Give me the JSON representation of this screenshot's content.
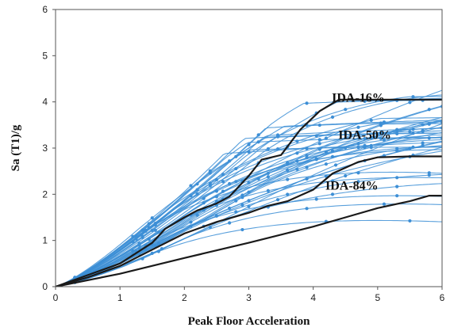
{
  "chart_data": {
    "type": "line",
    "title": "",
    "xlabel": "Peak Floor Acceleration",
    "ylabel": "Sa (T1)/g",
    "xlim": [
      0,
      6
    ],
    "ylim": [
      0,
      6
    ],
    "xticks": [
      "0",
      "1",
      "2",
      "3",
      "4",
      "5",
      "6"
    ],
    "yticks": [
      "0",
      "1",
      "2",
      "3",
      "4",
      "5",
      "6"
    ],
    "grid": false,
    "legend": "none",
    "colors": {
      "records": "#3d8fd6",
      "fractiles": "#1a1a1a"
    },
    "annotations": [
      {
        "text": "IDA-16%",
        "x": 4.7,
        "y": 4.0
      },
      {
        "text": "IDA-50%",
        "x": 4.8,
        "y": 3.2
      },
      {
        "text": "IDA-84%",
        "x": 4.6,
        "y": 2.1
      }
    ],
    "series": [
      {
        "x": [
          0,
          0.5,
          1.0,
          1.5,
          1.7,
          2.0,
          2.2,
          2.5,
          2.7,
          3.0,
          3.2,
          3.5,
          3.8,
          4.1,
          4.4,
          5.0,
          5.5,
          6.0
        ],
        "y": [
          0,
          0.25,
          0.5,
          0.95,
          1.25,
          1.5,
          1.65,
          1.8,
          1.95,
          2.4,
          2.75,
          2.85,
          3.4,
          3.8,
          4.05,
          4.05,
          4.05,
          4.05
        ]
      },
      {
        "x": [
          0,
          0.5,
          1.0,
          1.5,
          2.0,
          2.5,
          3.0,
          3.3,
          3.6,
          4.0,
          4.3,
          4.7,
          5.0,
          5.5,
          6.0
        ],
        "y": [
          0,
          0.2,
          0.45,
          0.8,
          1.15,
          1.4,
          1.6,
          1.75,
          1.85,
          2.1,
          2.45,
          2.7,
          2.8,
          2.82,
          2.82
        ]
      },
      {
        "x": [
          0,
          1.0,
          2.0,
          3.0,
          4.0,
          4.5,
          5.0,
          5.5,
          5.8,
          6.0
        ],
        "y": [
          0,
          0.28,
          0.62,
          0.95,
          1.3,
          1.5,
          1.7,
          1.85,
          1.97,
          1.97
        ]
      }
    ]
  }
}
